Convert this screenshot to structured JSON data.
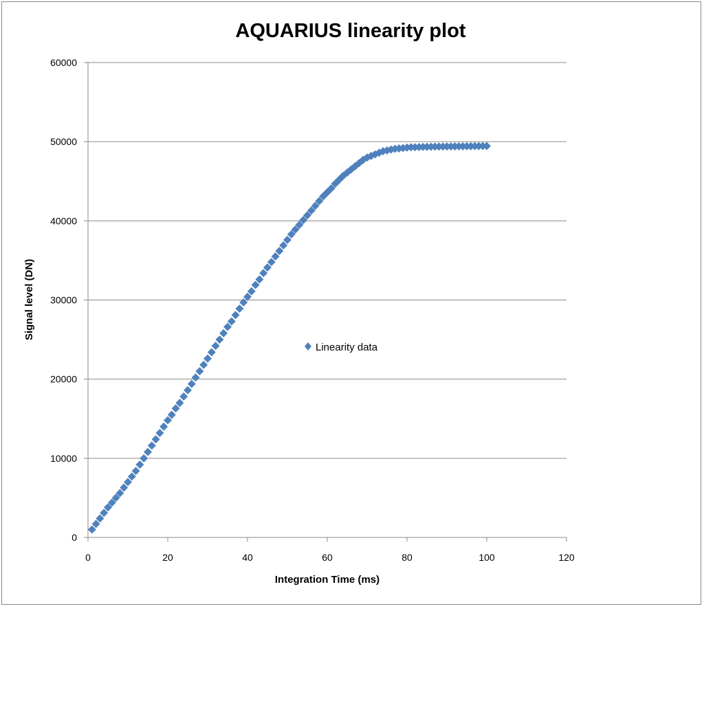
{
  "chart_data": {
    "type": "scatter",
    "title": "AQUARIUS linearity plot",
    "xlabel": "Integration Time (ms)",
    "ylabel": "Signal level (DN)",
    "xlim": [
      0,
      120
    ],
    "ylim": [
      0,
      60000
    ],
    "xticks": [
      0,
      20,
      40,
      60,
      80,
      100,
      120
    ],
    "yticks": [
      0,
      10000,
      20000,
      30000,
      40000,
      50000,
      60000
    ],
    "grid": "horizontal",
    "legend_position": "center",
    "marker_color": "#4F81BD",
    "series": [
      {
        "name": "Linearity data",
        "x": [
          1,
          2,
          3,
          4,
          5,
          6,
          7,
          8,
          9,
          10,
          11,
          12,
          13,
          14,
          15,
          16,
          17,
          18,
          19,
          20,
          21,
          22,
          23,
          24,
          25,
          26,
          27,
          28,
          29,
          30,
          31,
          32,
          33,
          34,
          35,
          36,
          37,
          38,
          39,
          40,
          41,
          42,
          43,
          44,
          45,
          46,
          47,
          48,
          49,
          50,
          51,
          52,
          53,
          54,
          55,
          56,
          57,
          58,
          59,
          60,
          61,
          62,
          63,
          64,
          65,
          66,
          67,
          68,
          69,
          70,
          71,
          72,
          73,
          74,
          75,
          76,
          77,
          78,
          79,
          80,
          81,
          82,
          83,
          84,
          85,
          86,
          87,
          88,
          89,
          90,
          91,
          92,
          93,
          94,
          95,
          96,
          97,
          98,
          99,
          100
        ],
        "y": [
          1000,
          1700,
          2400,
          3100,
          3800,
          4400,
          5000,
          5600,
          6300,
          7000,
          7700,
          8400,
          9200,
          10000,
          10800,
          11600,
          12400,
          13200,
          14000,
          14800,
          15500,
          16300,
          17000,
          17800,
          18600,
          19400,
          20200,
          21000,
          21800,
          22600,
          23400,
          24200,
          25000,
          25800,
          26600,
          27300,
          28100,
          28900,
          29700,
          30400,
          31100,
          31900,
          32600,
          33400,
          34100,
          34800,
          35500,
          36200,
          36900,
          37600,
          38300,
          38900,
          39500,
          40100,
          40700,
          41300,
          41900,
          42500,
          43100,
          43600,
          44100,
          44700,
          45200,
          45700,
          46100,
          46500,
          46900,
          47300,
          47700,
          48000,
          48200,
          48400,
          48600,
          48800,
          48900,
          49000,
          49100,
          49150,
          49200,
          49250,
          49300,
          49300,
          49320,
          49340,
          49350,
          49360,
          49370,
          49380,
          49390,
          49400,
          49400,
          49410,
          49420,
          49420,
          49430,
          49430,
          49440,
          49440,
          49450,
          49450
        ]
      }
    ]
  }
}
